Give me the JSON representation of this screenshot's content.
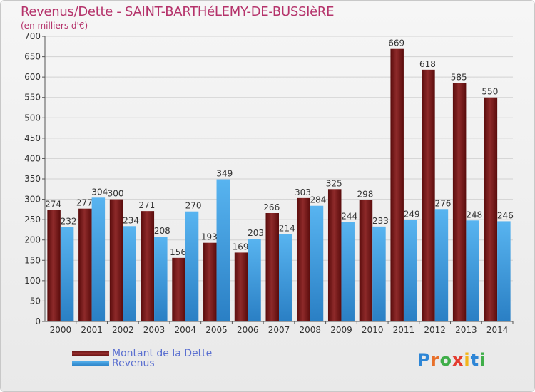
{
  "chart_data": {
    "type": "bar",
    "title": "Revenus/Dette - SAINT-BARTHéLEMY-DE-BUSSIèRE",
    "subtitle": "(en milliers d'€)",
    "categories": [
      "2000",
      "2001",
      "2002",
      "2003",
      "2004",
      "2005",
      "2006",
      "2007",
      "2008",
      "2009",
      "2010",
      "2011",
      "2012",
      "2013",
      "2014"
    ],
    "series": [
      {
        "name": "Montant de la Dette",
        "color": "#7a1616",
        "values": [
          274,
          277,
          300,
          271,
          156,
          193,
          169,
          266,
          303,
          325,
          298,
          669,
          618,
          585,
          550
        ]
      },
      {
        "name": "Revenus",
        "color": "#3f9de0",
        "values": [
          232,
          304,
          234,
          208,
          270,
          349,
          203,
          214,
          284,
          244,
          233,
          249,
          276,
          248,
          246
        ]
      }
    ],
    "ylim": [
      0,
      700
    ],
    "yticks": [
      0,
      50,
      100,
      150,
      200,
      250,
      300,
      350,
      400,
      450,
      500,
      550,
      600,
      650,
      700
    ],
    "grid": true,
    "legend_position": "bottom-left"
  },
  "logo": {
    "letters": [
      "P",
      "r",
      "o",
      "x",
      "i",
      "t",
      "i"
    ],
    "colors": [
      "#2e86d6",
      "#e8702a",
      "#3fae49",
      "#e43d30",
      "#f2b51c",
      "#2e86d6",
      "#3fae49"
    ]
  }
}
